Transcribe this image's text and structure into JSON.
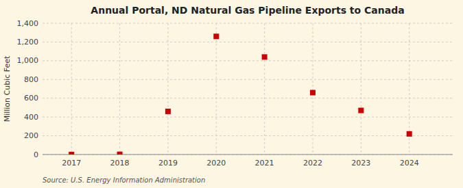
{
  "chart_data": {
    "type": "scatter",
    "title": "Annual Portal, ND Natural Gas Pipeline Exports to Canada",
    "ylabel": "Million Cubic Feet",
    "annotations": [
      "Source: U.S. Energy Information Administration"
    ],
    "x": [
      2017,
      2018,
      2019,
      2020,
      2021,
      2022,
      2023,
      2024
    ],
    "values": [
      0,
      2,
      460,
      1260,
      1040,
      660,
      470,
      220
    ],
    "color": "#cc0000",
    "marker": "square",
    "grid": true,
    "xlim": [
      2016.4,
      2024.9
    ],
    "xticks": [
      2017,
      2018,
      2019,
      2020,
      2021,
      2022,
      2023,
      2024
    ],
    "ylim": [
      0,
      1400
    ],
    "yticks": [
      0,
      200,
      400,
      600,
      800,
      {
        "value": 1000,
        "label": "1,000"
      },
      {
        "value": 1200,
        "label": "1,200"
      },
      {
        "value": 1400,
        "label": "1,400"
      }
    ]
  }
}
